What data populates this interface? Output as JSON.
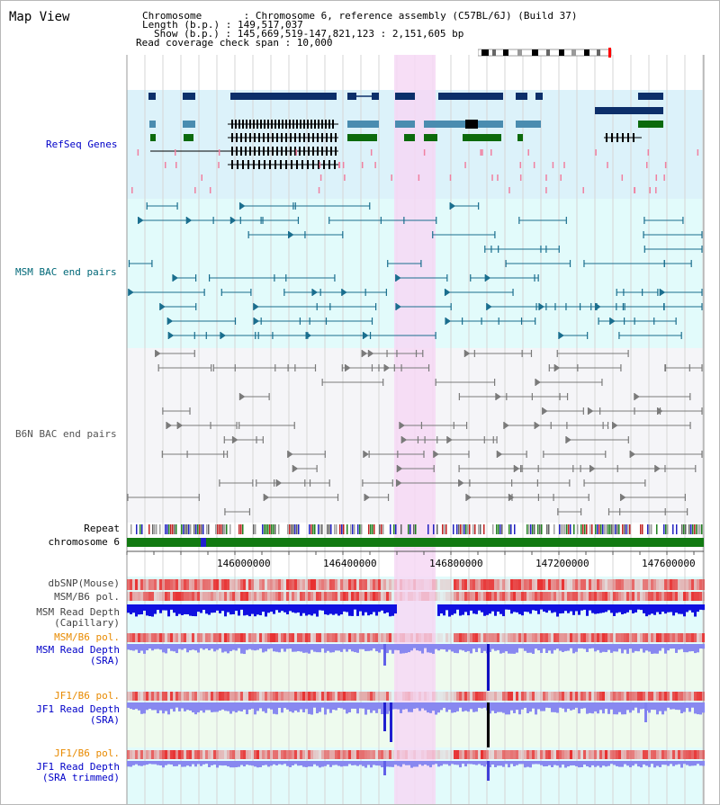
{
  "app_title": "Map View",
  "info": {
    "chromosome": "Chromosome       : Chromosome 6, reference assembly (C57BL/6J) (Build 37)",
    "length": "Length (b.p.) : 149,517,037",
    "show": "Show (b.p.) : 145,669,519-147,821,123 : 2,151,605 bp",
    "coverage": "Read coverage check span : 10,000"
  },
  "tracks": {
    "refseq": "RefSeq Genes",
    "msm_bac": "MSM BAC end pairs",
    "b6n_bac": "B6N BAC end pairs",
    "repeat": "Repeat",
    "chromosome": "chromosome 6",
    "dbsnp": "dbSNP(Mouse)",
    "msm_b6_pol": "MSM/B6 pol.",
    "msm_read_depth_cap_1": "MSM Read Depth",
    "msm_read_depth_cap_2": "(Capillary)",
    "msm_b6_pol_2": "MSM/B6 pol.",
    "msm_read_depth_sra_1": "MSM Read Depth",
    "msm_read_depth_sra_2": "(SRA)",
    "jf1_b6_pol": "JF1/B6 pol.",
    "jf1_read_depth_sra_1": "JF1 Read Depth",
    "jf1_read_depth_sra_2": "(SRA)",
    "jf1_b6_pol_2": "JF1/B6 pol.",
    "jf1_read_depth_trim_1": "JF1 Read Depth",
    "jf1_read_depth_trim_2": "(SRA trimmed)"
  },
  "axis_ticks": [
    "146000000",
    "146400000",
    "146800000",
    "147200000",
    "147600000"
  ],
  "colors": {
    "refseq_bg": "#dcf2fa",
    "msm_bac_bg": "#e2fbfb",
    "b6n_bac_bg": "#f5f5f8",
    "highlight": "#f6d8f4",
    "gene_dark": "#0c2f6a",
    "gene_mid": "#4a8cb0",
    "gene_green": "#0c6a0c",
    "msm_bac": "#1a6e8e",
    "b6n_bac": "#7a7a7a",
    "depth_blue": "#1010e0",
    "depth_light": "#8888f0",
    "pol_red": "#e02020",
    "orange_label": "#e88a00",
    "blue_label": "#0000c8",
    "teal_label": "#006878"
  }
}
